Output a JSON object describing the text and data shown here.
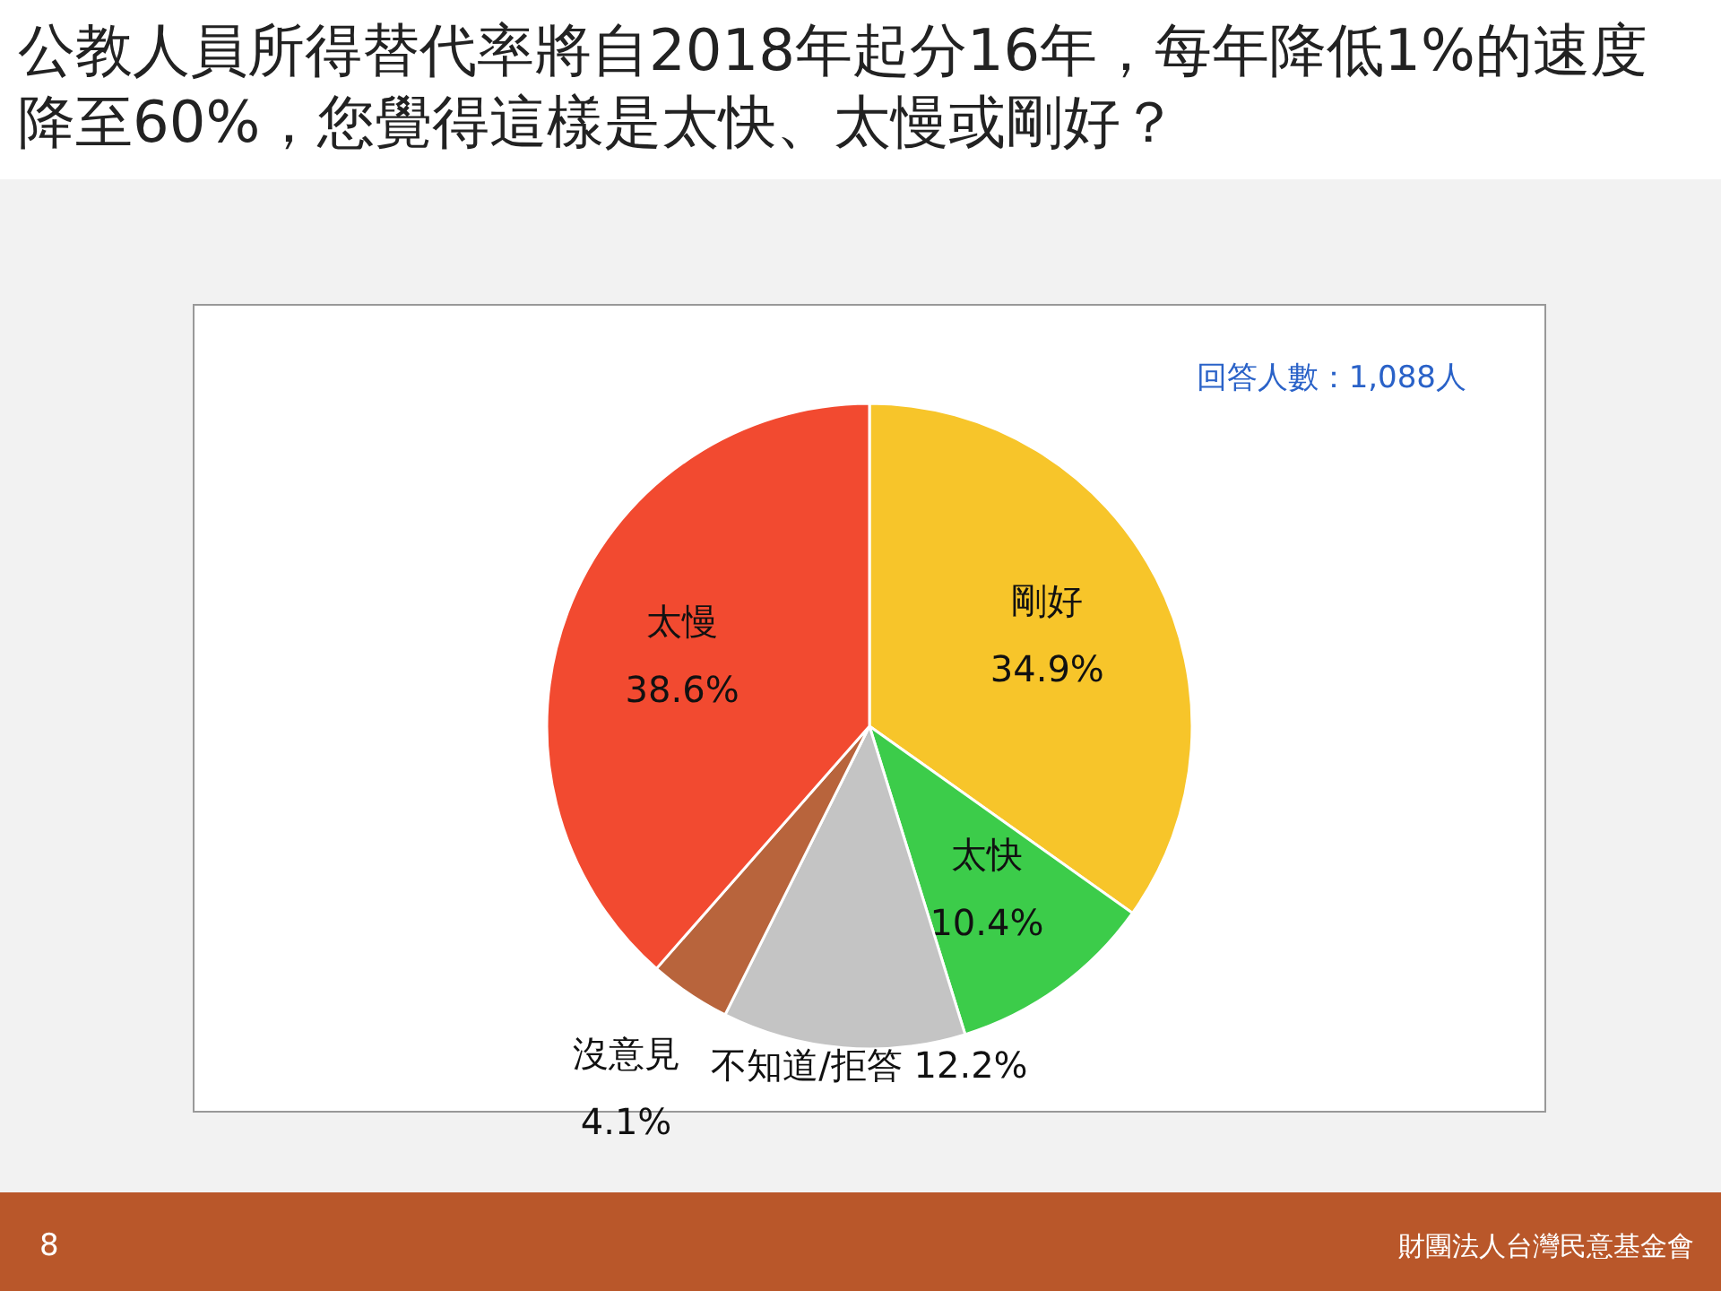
{
  "chart_data": {
    "type": "pie",
    "title": "公教人員所得替代率將自2018年起分16年，每年降低1%的速度降至60%，您覺得這樣是太快、太慢或剛好？",
    "categories": [
      "剛好",
      "太快",
      "不知道/拒答",
      "沒意見",
      "太慢"
    ],
    "values": [
      34.9,
      10.4,
      12.2,
      4.1,
      38.6
    ],
    "colors": [
      "#f7c52a",
      "#3ccc4a",
      "#c4c4c4",
      "#b8643c",
      "#f24a30"
    ],
    "value_labels": [
      "34.9%",
      "10.4%",
      "12.2%",
      "4.1%",
      "38.6%"
    ],
    "annotations": [
      "回答人數：1,088人",
      "8",
      "財團法人台灣民意基金會"
    ]
  }
}
